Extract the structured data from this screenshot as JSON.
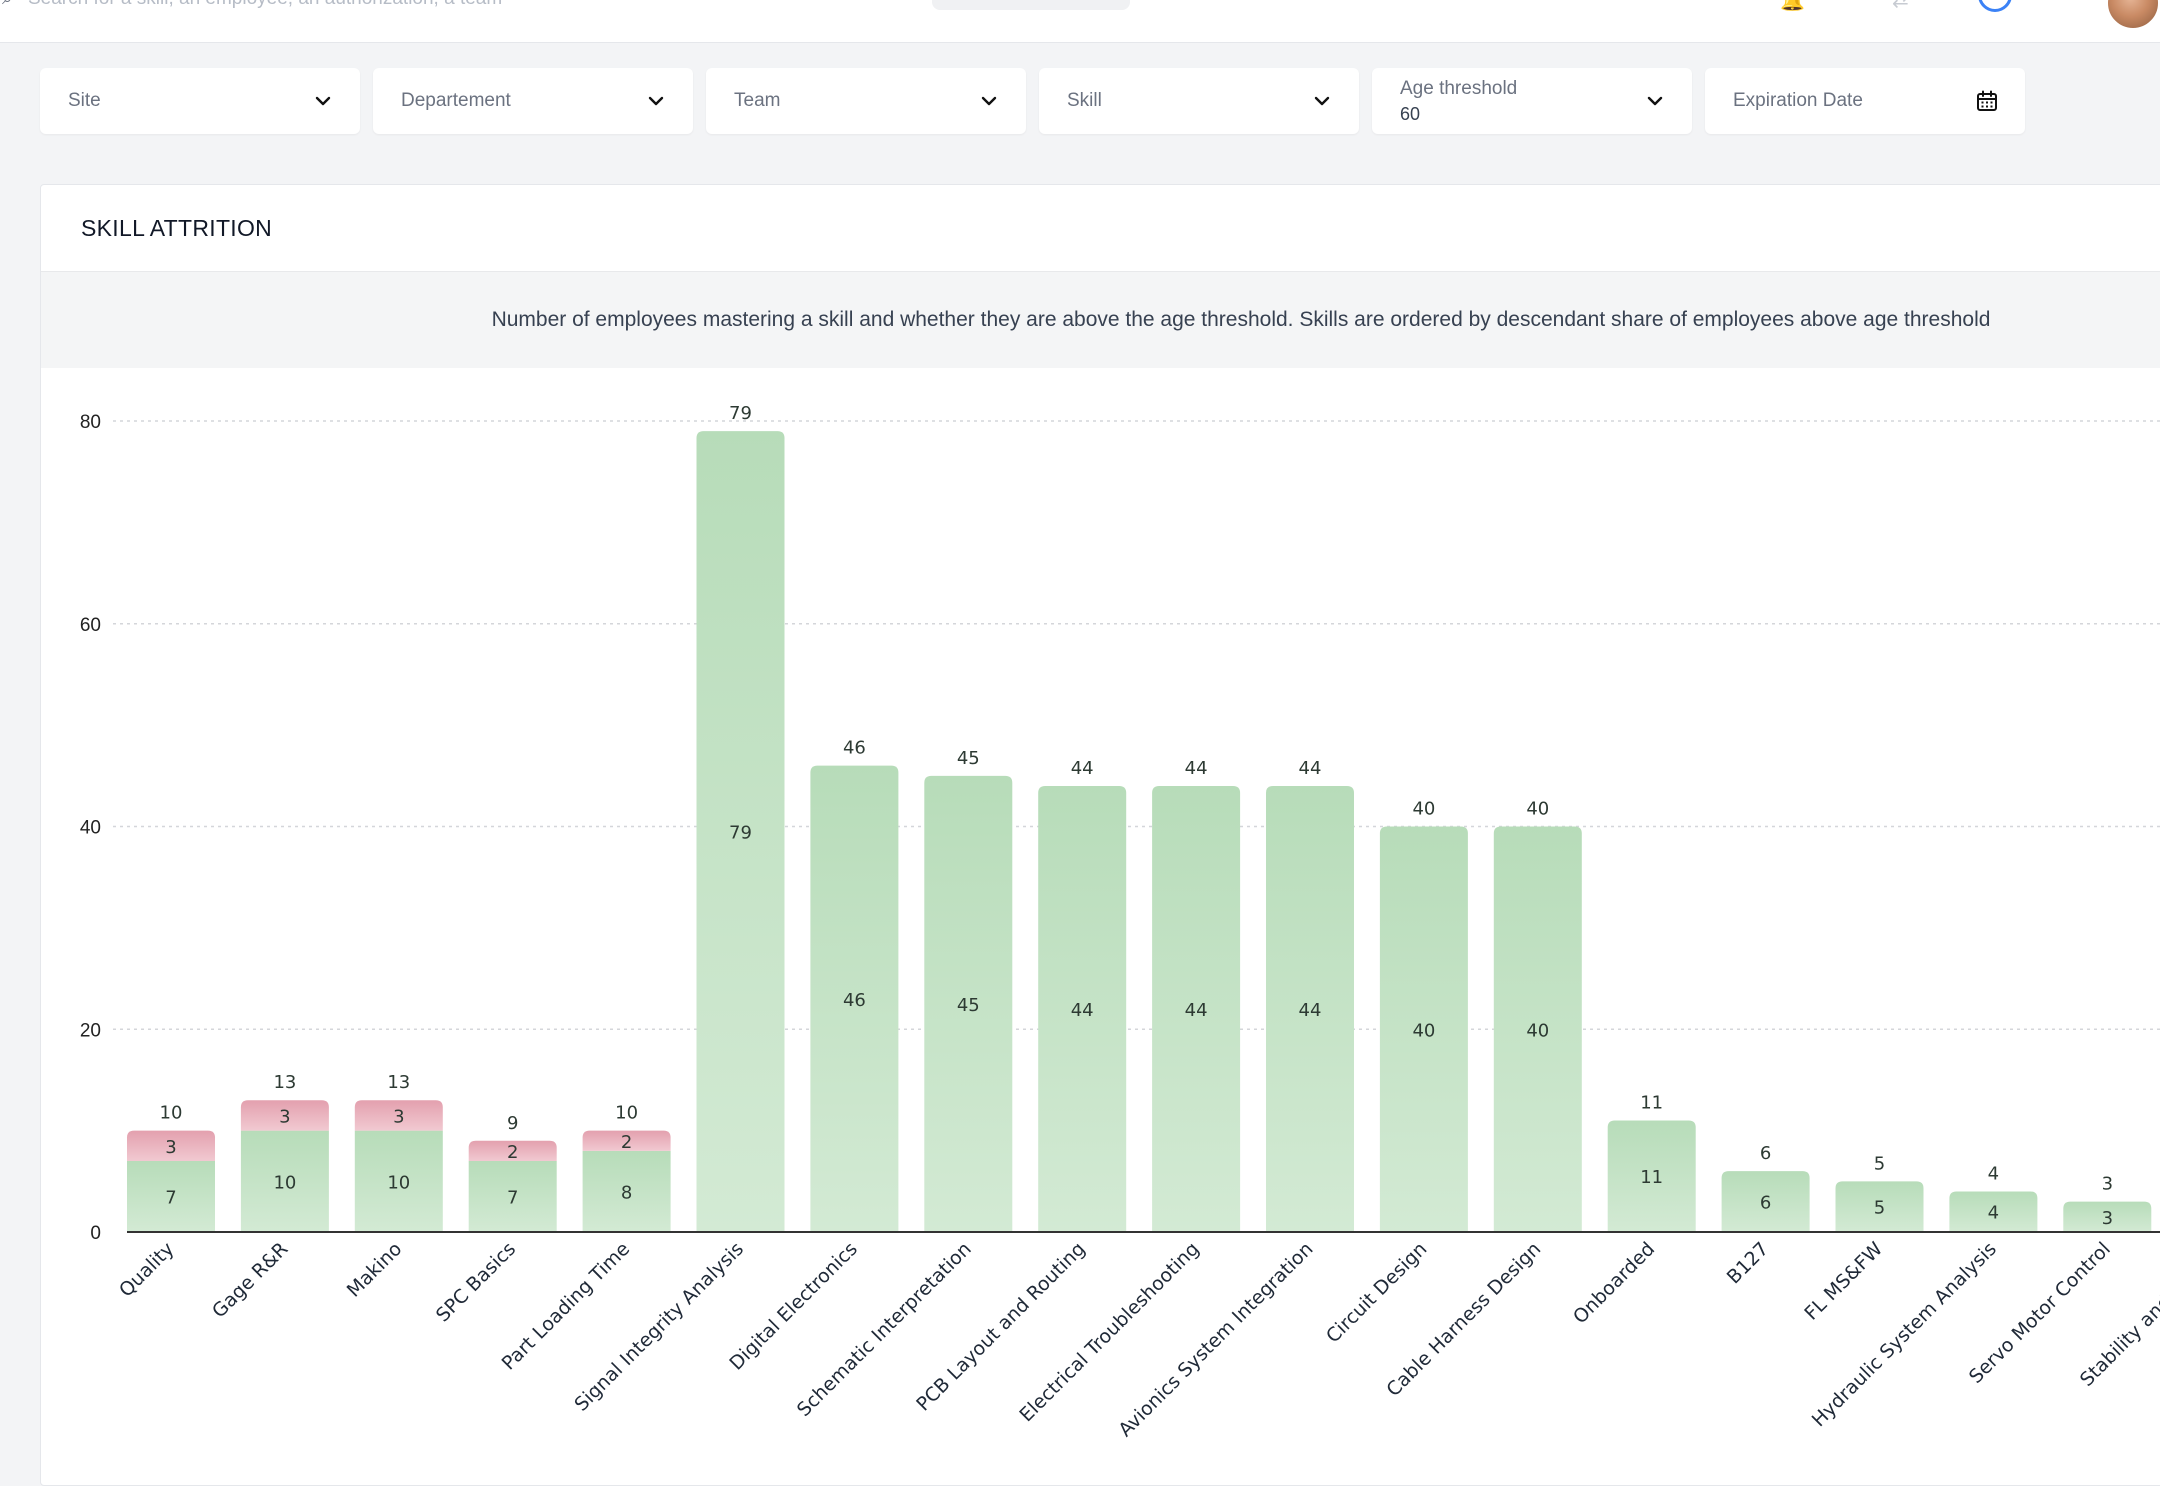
{
  "topbar": {
    "search_placeholder": "Search for a skill, an employee, an authorization, a team"
  },
  "filters": {
    "site": "Site",
    "department": "Departement",
    "team": "Team",
    "skill": "Skill",
    "age_threshold_label": "Age threshold",
    "age_threshold_value": "60",
    "expiration_date": "Expiration Date"
  },
  "card": {
    "title": "SKILL ATTRITION",
    "description": "Number of employees mastering a skill and whether they are above the age threshold. Skills are ordered by descendant share of employees above age threshold"
  },
  "chart_data": {
    "type": "bar",
    "stacked": true,
    "categories": [
      "Quality",
      "Gage R&R",
      "Makino",
      "SPC Basics",
      "Part Loading Time",
      "Signal Integrity Analysis",
      "Digital Electronics",
      "Schematic Interpretation",
      "PCB Layout and Routing",
      "Electrical Troubleshooting",
      "Avionics System Integration",
      "Circuit Design",
      "Cable Harness Design",
      "Onboarded",
      "B127",
      "FL MS&FW",
      "Hydraulic System Analysis",
      "Servo Motor Control",
      "Stability and Control"
    ],
    "series": [
      {
        "values": [
          7,
          10,
          10,
          7,
          8,
          79,
          46,
          45,
          44,
          44,
          44,
          40,
          40,
          11,
          6,
          5,
          4,
          3,
          3
        ],
        "color": "#b9dfbc"
      },
      {
        "values": [
          3,
          3,
          3,
          2,
          2,
          0,
          0,
          0,
          0,
          0,
          0,
          0,
          0,
          0,
          0,
          0,
          0,
          0,
          0
        ],
        "color": "#e7a9b6"
      }
    ],
    "totals": [
      10,
      13,
      13,
      9,
      10,
      79,
      46,
      45,
      44,
      44,
      44,
      40,
      40,
      11,
      6,
      5,
      4,
      3,
      3
    ],
    "yticks": [
      0,
      20,
      40,
      60,
      80
    ],
    "ylim": [
      0,
      80
    ],
    "grid": true
  }
}
